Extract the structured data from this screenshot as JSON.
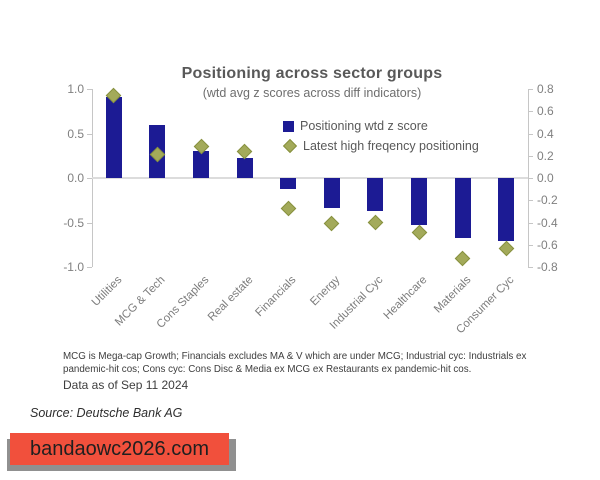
{
  "page": {
    "background": "#ffffff"
  },
  "chart_data": {
    "type": "bar",
    "title": "Positioning across sector groups",
    "subtitle": "(wtd avg z scores across diff indicators)",
    "categories": [
      "Utilities",
      "MCG & Tech",
      "Cons Staples",
      "Real estate",
      "Financials",
      "Energy",
      "Industrial Cyc",
      "Healthcare",
      "Materials",
      "Consumer Cyc"
    ],
    "series": [
      {
        "name": "Positioning wtd z score",
        "type": "bar",
        "axis": "left",
        "color": "#1c1b94",
        "values": [
          0.91,
          0.6,
          0.3,
          0.22,
          -0.12,
          -0.34,
          -0.37,
          -0.53,
          -0.67,
          -0.71
        ]
      },
      {
        "name": "Latest high freqency positioning",
        "type": "scatter",
        "marker": "diamond",
        "axis": "right",
        "color": "#a3aa5a",
        "border_color": "#87913f",
        "values": [
          0.74,
          0.21,
          0.28,
          0.24,
          -0.27,
          -0.41,
          -0.4,
          -0.49,
          -0.72,
          -0.63
        ]
      }
    ],
    "left_axis": {
      "min": -1.0,
      "max": 1.0,
      "tick_labels": [
        "1.0",
        "0.5",
        "0.0",
        "-0.5",
        "-1.0"
      ],
      "tick_values": [
        1.0,
        0.5,
        0.0,
        -0.5,
        -1.0
      ]
    },
    "right_axis": {
      "min": -0.8,
      "max": 0.8,
      "tick_labels": [
        "0.8",
        "0.6",
        "0.4",
        "0.2",
        "0.0",
        "-0.2",
        "-0.4",
        "-0.6",
        "-0.8"
      ],
      "tick_values": [
        0.8,
        0.6,
        0.4,
        0.2,
        0.0,
        -0.2,
        -0.4,
        -0.6,
        -0.8
      ]
    },
    "grid": "zero-line-only",
    "legend_position": "inside-top-right"
  },
  "notes": {
    "footnote": "MCG is Mega-cap Growth; Financials excludes MA & V which are under MCG;  Industrial cyc: Industrials ex pandemic-hit cos; Cons cyc: Cons Disc & Media ex MCG ex Restaurants ex pandemic-hit cos.",
    "data_as_of": "Data as of Sep 11 2024"
  },
  "source": {
    "text": "Source: Deutsche Bank AG"
  },
  "banner": {
    "text": "bandaowc2026.com",
    "background": "#f1503c",
    "shadow_color": "#909090"
  }
}
